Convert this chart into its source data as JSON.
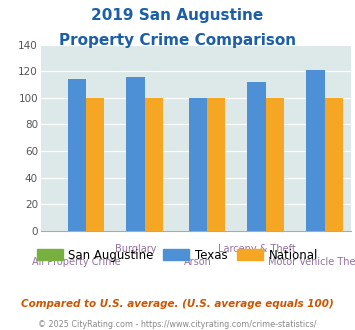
{
  "title_line1": "2019 San Augustine",
  "title_line2": "Property Crime Comparison",
  "categories": [
    "All Property Crime",
    "Burglary",
    "Arson",
    "Larceny & Theft",
    "Motor Vehicle Theft"
  ],
  "x_labels_top": [
    "",
    "Burglary",
    "",
    "Larceny & Theft",
    ""
  ],
  "x_labels_bottom": [
    "All Property Crime",
    "",
    "Arson",
    "",
    "Motor Vehicle Theft"
  ],
  "san_augustine": [
    0,
    0,
    0,
    0,
    0
  ],
  "texas": [
    114,
    116,
    100,
    112,
    121
  ],
  "national": [
    100,
    100,
    100,
    100,
    100
  ],
  "colors": {
    "san_augustine": "#78b040",
    "texas": "#4d90d5",
    "national": "#f5a623"
  },
  "ylim": [
    0,
    140
  ],
  "yticks": [
    0,
    20,
    40,
    60,
    80,
    100,
    120,
    140
  ],
  "plot_bg": "#dde8e8",
  "title_color": "#1a5fa8",
  "xlabel_color": "#9370a0",
  "legend_labels": [
    "San Augustine",
    "Texas",
    "National"
  ],
  "footer_text": "Compared to U.S. average. (U.S. average equals 100)",
  "copyright_text": "© 2025 CityRating.com - https://www.cityrating.com/crime-statistics/",
  "footer_color": "#cc5500",
  "copyright_color": "#888888",
  "grid_color": "#ffffff",
  "spine_color": "#aaaaaa"
}
